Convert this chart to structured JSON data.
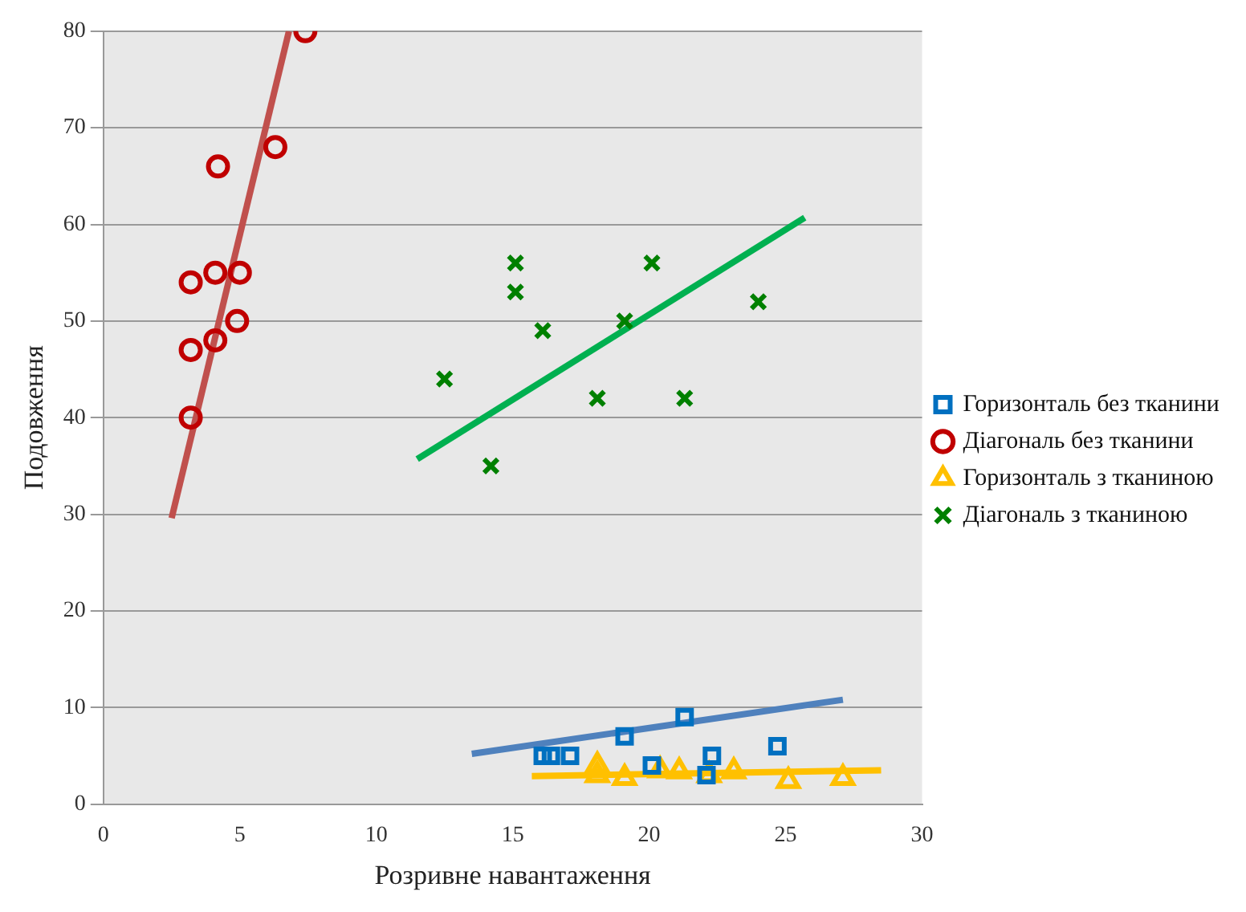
{
  "chart_data": {
    "type": "scatter",
    "xlabel": "Розривне навантаження",
    "ylabel": "Подовження",
    "xlim": [
      0,
      30
    ],
    "xticks": [
      0,
      5,
      10,
      15,
      20,
      25,
      30
    ],
    "ylim": [
      0,
      80
    ],
    "yticks": [
      0,
      10,
      20,
      30,
      40,
      50,
      60,
      70,
      80
    ],
    "grid": "y",
    "legend": "right",
    "series": [
      {
        "name": "Горизонталь без тканини",
        "color": "#0070c0",
        "marker": "square",
        "x": [
          16.1,
          16.4,
          17.1,
          19.1,
          21.3,
          20.1,
          22.3,
          22.1,
          24.7
        ],
        "values": [
          5,
          5,
          5,
          7,
          9,
          4,
          5,
          3,
          6
        ]
      },
      {
        "name": "Діагональ без тканини",
        "color": "#c00000",
        "marker": "circle",
        "x": [
          3.2,
          3.2,
          4.1,
          4.9,
          3.2,
          4.1,
          5.0,
          4.2,
          6.3,
          7.4
        ],
        "values": [
          40,
          47,
          48,
          50,
          54,
          55,
          55,
          66,
          68,
          80
        ]
      },
      {
        "name": "Горизонталь з тканиною",
        "color": "#ffc000",
        "marker": "triangle",
        "x": [
          18.1,
          18.1,
          19.1,
          20.4,
          21.1,
          22.2,
          23.1,
          25.1,
          27.1
        ],
        "values": [
          4,
          3,
          2.7,
          3.5,
          3.4,
          3,
          3.4,
          2.4,
          2.7
        ]
      },
      {
        "name": "Діагональ з тканиною",
        "color": "#008000",
        "marker": "cross",
        "x": [
          12.5,
          14.2,
          15.1,
          15.1,
          16.1,
          18.1,
          19.1,
          20.1,
          21.3,
          24.0
        ],
        "values": [
          44,
          35,
          56,
          53,
          49,
          42,
          50,
          56,
          42,
          52
        ]
      },
      {
        "type": "line",
        "color": "#4f81bd",
        "marker": "none",
        "x": [
          13.5,
          27.1
        ],
        "values": [
          5.2,
          10.8
        ]
      },
      {
        "type": "line",
        "color": "#c0504d",
        "marker": "none",
        "x": [
          2.5,
          6.8
        ],
        "values": [
          29.6,
          80
        ]
      },
      {
        "type": "line",
        "color": "#ffc000",
        "marker": "none",
        "x": [
          15.7,
          28.5
        ],
        "values": [
          2.9,
          3.5
        ]
      },
      {
        "type": "line",
        "color": "#00b050",
        "marker": "none",
        "x": [
          11.5,
          25.7
        ],
        "values": [
          35.7,
          60.7
        ]
      }
    ]
  }
}
